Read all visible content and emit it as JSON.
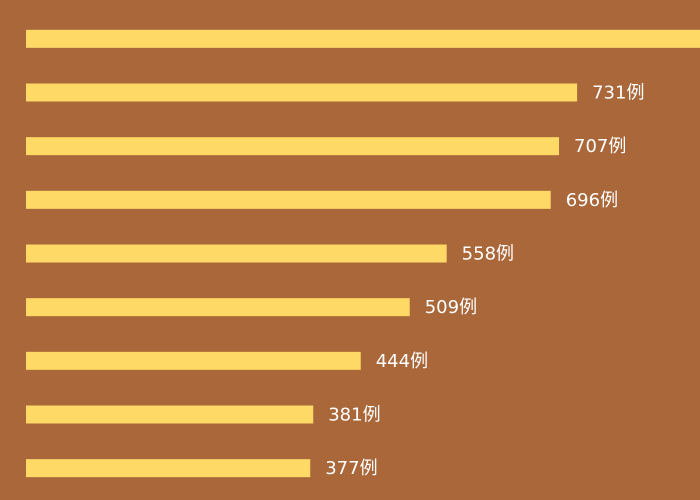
{
  "chart_data": {
    "type": "hbar",
    "categories": [
      null,
      null,
      null,
      null,
      null,
      null,
      null,
      null,
      null
    ],
    "values": [
      894,
      731,
      707,
      696,
      558,
      509,
      444,
      381,
      377
    ],
    "value_labels": [
      null,
      "731例",
      "707例",
      "696例",
      "558例",
      "509例",
      "444例",
      "381例",
      "377例"
    ],
    "color": "#FFD966",
    "xlim": [
      0,
      894
    ]
  }
}
